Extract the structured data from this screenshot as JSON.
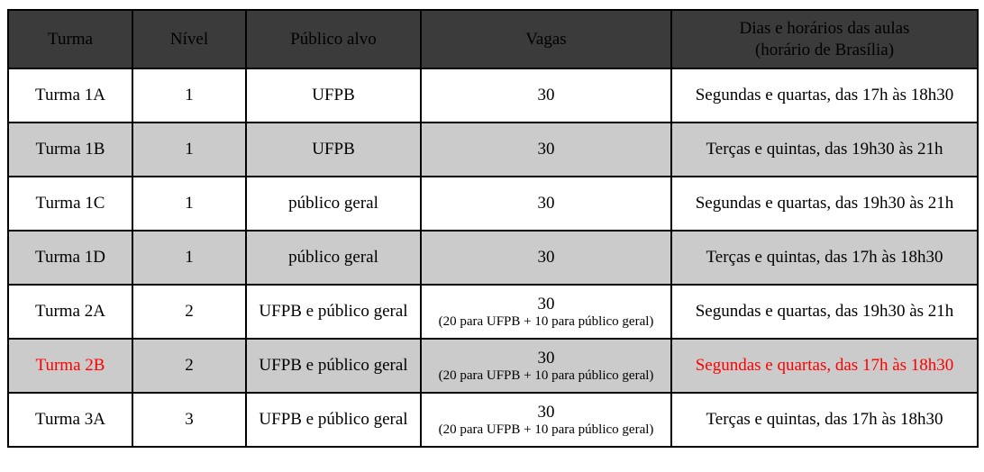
{
  "colors": {
    "header_bg": "#3b3b3b",
    "header_text": "#ffffff",
    "row_bg": "#ffffff",
    "row_shaded_bg": "#cbcbcb",
    "border": "#000000",
    "text": "#000000",
    "highlight_text": "#ff0000"
  },
  "table": {
    "columns": [
      {
        "label": "Turma"
      },
      {
        "label": "Nível"
      },
      {
        "label": "Público alvo"
      },
      {
        "label": "Vagas"
      },
      {
        "label": "Dias e horários das aulas",
        "label2": "(horário de Brasília)"
      }
    ],
    "rows": [
      {
        "turma": "Turma 1A",
        "nivel": "1",
        "publico": "UFPB",
        "vagas": "30",
        "vagas_note": "",
        "horario": "Segundas e quartas, das 17h às 18h30"
      },
      {
        "turma": "Turma 1B",
        "nivel": "1",
        "publico": "UFPB",
        "vagas": "30",
        "vagas_note": "",
        "horario": "Terças e quintas, das 19h30 às 21h"
      },
      {
        "turma": "Turma 1C",
        "nivel": "1",
        "publico": "público geral",
        "vagas": "30",
        "vagas_note": "",
        "horario": "Segundas e quartas, das 19h30 às 21h"
      },
      {
        "turma": "Turma 1D",
        "nivel": "1",
        "publico": "público geral",
        "vagas": "30",
        "vagas_note": "",
        "horario": "Terças e quintas, das 17h às 18h30"
      },
      {
        "turma": "Turma 2A",
        "nivel": "2",
        "publico": "UFPB e público geral",
        "vagas": "30",
        "vagas_note": "(20 para UFPB + 10 para público geral)",
        "horario": "Segundas e quartas, das 19h30 às 21h"
      },
      {
        "turma": "Turma 2B",
        "nivel": "2",
        "publico": "UFPB e público geral",
        "vagas": "30",
        "vagas_note": "(20 para UFPB + 10 para público geral)",
        "horario": "Segundas e quartas, das 17h às 18h30"
      },
      {
        "turma": "Turma 3A",
        "nivel": "3",
        "publico": "UFPB e público geral",
        "vagas": "30",
        "vagas_note": "(20 para UFPB + 10 para público geral)",
        "horario": "Terças e quintas, das 17h às 18h30"
      }
    ]
  }
}
